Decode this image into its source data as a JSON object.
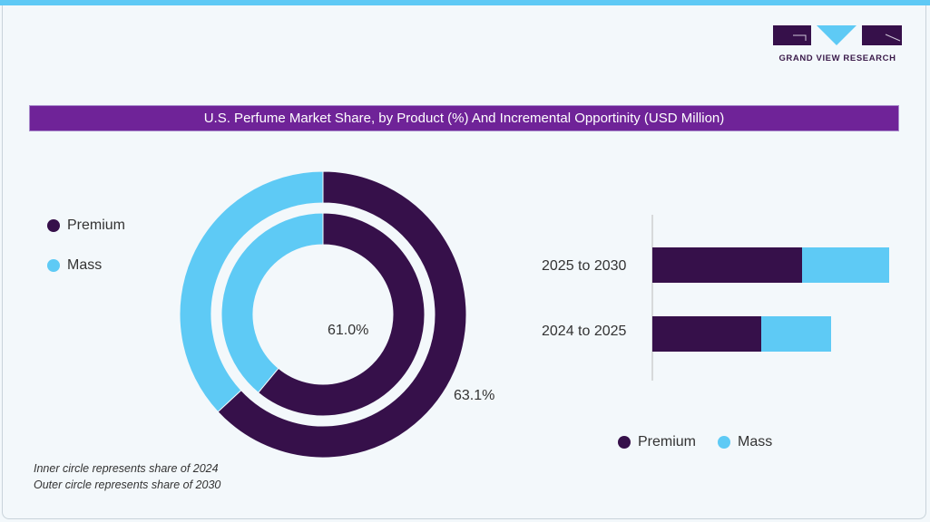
{
  "brand": {
    "name": "GRAND VIEW RESEARCH"
  },
  "title": "U.S. Perfume Market Share, by Product (%) And Incremental Opportinity (USD Million)",
  "colors": {
    "premium": "#36104a",
    "mass": "#5ecaf5",
    "title_bar": "#6f2398"
  },
  "chart_data": [
    {
      "type": "pie",
      "variant": "nested-donut",
      "legend": [
        "Premium",
        "Mass"
      ],
      "legend_position": "left",
      "rings": [
        {
          "ring": "inner",
          "period": "2024",
          "values": [
            {
              "name": "Premium",
              "value": 61.0
            },
            {
              "name": "Mass",
              "value": 39.0
            }
          ],
          "label": "61.0%"
        },
        {
          "ring": "outer",
          "period": "2030",
          "values": [
            {
              "name": "Premium",
              "value": 63.1
            },
            {
              "name": "Mass",
              "value": 36.9
            }
          ],
          "label": "63.1%"
        }
      ],
      "notes": [
        "Inner circle represents share of 2024",
        "Outer circle represents share of 2030"
      ]
    },
    {
      "type": "bar",
      "orientation": "horizontal",
      "stacked": true,
      "categories": [
        "2025 to 2030",
        "2024 to 2025"
      ],
      "series": [
        {
          "name": "Premium",
          "values": [
            165,
            120
          ]
        },
        {
          "name": "Mass",
          "values": [
            96,
            77
          ]
        }
      ],
      "value_axis_shown": false,
      "legend_position": "bottom"
    }
  ]
}
